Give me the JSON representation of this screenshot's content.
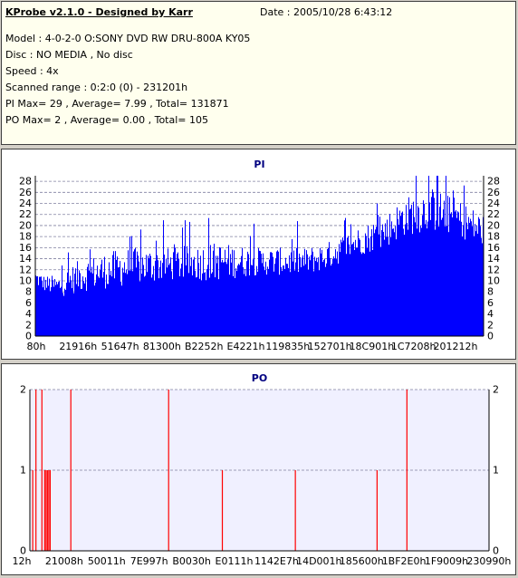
{
  "header": {
    "title": "KProbe v2.1.0 - Designed by Karr",
    "date": "Date : 2005/10/28 6:43:12",
    "lines": [
      "Model : 4-0-2-0 O:SONY    DVD RW DRU-800A  KY05",
      "Disc : NO MEDIA , No disc",
      "Speed : 4x",
      "Scanned range : 0:2:0 (0) - 231201h",
      "PI Max= 29 , Average= 7.99 , Total= 131871",
      "PO Max= 2 , Average= 0.00 , Total= 105"
    ]
  },
  "chart_data": [
    {
      "type": "bar",
      "title": "PI",
      "ylim": [
        0,
        29
      ],
      "yticks": [
        0,
        2,
        4,
        6,
        8,
        10,
        12,
        14,
        16,
        18,
        20,
        22,
        24,
        26,
        28
      ],
      "xtick_labels": [
        "80h",
        "21916h",
        "51647h",
        "81300h",
        "B2252h",
        "E4221h",
        "119835h",
        "152701h",
        "18C901h",
        "1C7208h",
        "201212h"
      ],
      "bar_color": "#0000ff",
      "max": 29,
      "average": 7.99,
      "grid": true,
      "profile": [
        {
          "pos": 0.0,
          "base": 9,
          "peak": 12
        },
        {
          "pos": 0.02,
          "base": 8,
          "peak": 11
        },
        {
          "pos": 0.05,
          "base": 7,
          "peak": 11
        },
        {
          "pos": 0.1,
          "base": 8,
          "peak": 14
        },
        {
          "pos": 0.2,
          "base": 9,
          "peak": 16
        },
        {
          "pos": 0.3,
          "base": 10,
          "peak": 16
        },
        {
          "pos": 0.4,
          "base": 10,
          "peak": 17
        },
        {
          "pos": 0.5,
          "base": 11,
          "peak": 16
        },
        {
          "pos": 0.6,
          "base": 11,
          "peak": 16
        },
        {
          "pos": 0.65,
          "base": 12,
          "peak": 17
        },
        {
          "pos": 0.7,
          "base": 14,
          "peak": 19
        },
        {
          "pos": 0.78,
          "base": 16,
          "peak": 22
        },
        {
          "pos": 0.82,
          "base": 18,
          "peak": 25
        },
        {
          "pos": 0.88,
          "base": 19,
          "peak": 27
        },
        {
          "pos": 0.94,
          "base": 18,
          "peak": 25
        },
        {
          "pos": 1.0,
          "base": 16,
          "peak": 22
        }
      ]
    },
    {
      "type": "bar",
      "title": "PO",
      "ylim": [
        0,
        2
      ],
      "yticks": [
        0,
        1,
        2
      ],
      "xtick_labels": [
        "12h",
        "21008h",
        "50011h",
        "7E997h",
        "B0030h",
        "E0111h",
        "1142E7h",
        "14D001h",
        "185600h",
        "1BF2E0h",
        "1F9009h",
        "230990h"
      ],
      "bar_color": "#ff0000",
      "max": 2,
      "average": 0.0,
      "grid": true,
      "bars": [
        {
          "pos": 0.005,
          "value": 1
        },
        {
          "pos": 0.012,
          "value": 2
        },
        {
          "pos": 0.025,
          "value": 2
        },
        {
          "pos": 0.031,
          "value": 1
        },
        {
          "pos": 0.034,
          "value": 1
        },
        {
          "pos": 0.037,
          "value": 1
        },
        {
          "pos": 0.04,
          "value": 1
        },
        {
          "pos": 0.043,
          "value": 1
        },
        {
          "pos": 0.088,
          "value": 2
        },
        {
          "pos": 0.301,
          "value": 2
        },
        {
          "pos": 0.418,
          "value": 1
        },
        {
          "pos": 0.577,
          "value": 1
        },
        {
          "pos": 0.755,
          "value": 1
        },
        {
          "pos": 0.82,
          "value": 2
        }
      ]
    }
  ]
}
